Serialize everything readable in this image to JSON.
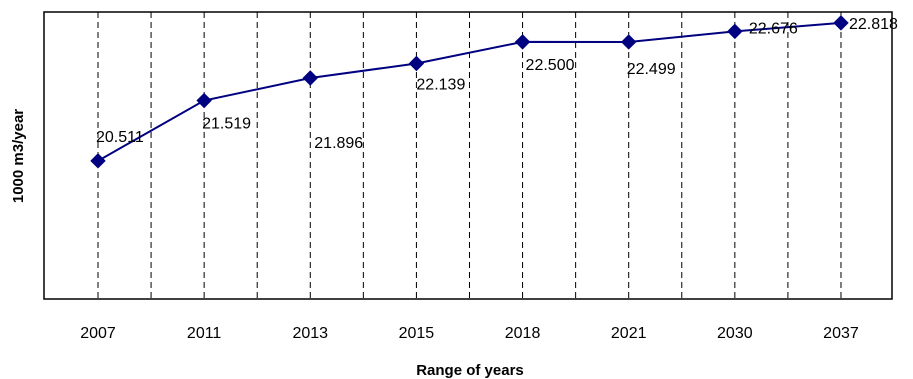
{
  "colors": {
    "series": "#000080",
    "frame": "#000000",
    "grid": "#000000",
    "background": "#ffffff"
  },
  "chart_data": {
    "type": "line",
    "title": "",
    "xlabel": "Range of years",
    "ylabel": "1000 m3/year",
    "categories": [
      "2007",
      "2011",
      "2013",
      "2015",
      "2018",
      "2021",
      "2030",
      "2037"
    ],
    "series": [
      {
        "values": [
          20.511,
          21.519,
          21.896,
          22.139,
          22.5,
          22.499,
          22.676,
          22.818
        ],
        "labels": [
          "20.511",
          "21.519",
          "21.896",
          "22.139",
          "22.500",
          "22.499",
          "22.676",
          "22.818"
        ],
        "marker": "diamond"
      }
    ],
    "ylim": [
      18.2,
      23.0
    ],
    "grid": "vertical dashed",
    "legend": "none"
  }
}
